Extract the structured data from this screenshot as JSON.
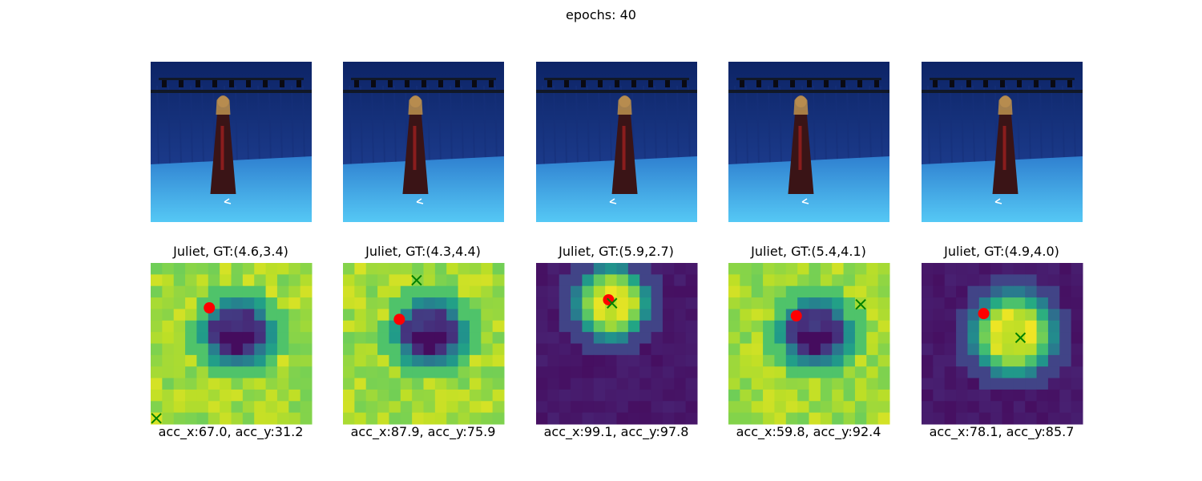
{
  "suptitle": "epochs: 40",
  "chart_data": {
    "type": "heatmap",
    "colormap": "viridis",
    "grid_size": [
      14,
      14
    ],
    "axes_visible": false,
    "markers": {
      "predicted": {
        "shape": "filled circle",
        "color": "#ff0000"
      },
      "ground_truth": {
        "shape": "x",
        "color": "#008000"
      }
    },
    "panels": [
      {
        "title": "Juliet, GT:(4.6,3.4)",
        "footer": "acc_x:67.0, acc_y:31.2",
        "pattern": "ring",
        "center": [
          7.6,
          6.1
        ],
        "radius": 3.3,
        "pred": [
          5.1,
          3.9
        ],
        "gt": [
          0.5,
          13.5
        ]
      },
      {
        "title": "Juliet, GT:(4.3,4.4)",
        "footer": "acc_x:87.9, acc_y:75.9",
        "pattern": "ring",
        "center": [
          7.6,
          6.1
        ],
        "radius": 3.3,
        "pred": [
          4.9,
          4.9
        ],
        "gt": [
          6.4,
          1.5
        ]
      },
      {
        "title": "Juliet, GT:(5.9,2.7)",
        "footer": "acc_x:99.1, acc_y:97.8",
        "pattern": "blob",
        "center": [
          6.6,
          3.5
        ],
        "radius": 3.5,
        "pred": [
          6.3,
          3.2
        ],
        "gt": [
          6.6,
          3.5
        ]
      },
      {
        "title": "Juliet, GT:(5.4,4.1)",
        "footer": "acc_x:59.8, acc_y:92.4",
        "pattern": "ring",
        "center": [
          7.6,
          6.1
        ],
        "radius": 3.3,
        "pred": [
          5.9,
          4.6
        ],
        "gt": [
          11.5,
          3.6
        ]
      },
      {
        "title": "Juliet, GT:(4.9,4.0)",
        "footer": "acc_x:78.1, acc_y:85.7",
        "pattern": "blob",
        "center": [
          8.0,
          6.2
        ],
        "radius": 4.0,
        "pred": [
          5.4,
          4.4
        ],
        "gt": [
          8.6,
          6.5
        ]
      }
    ]
  },
  "colors": {
    "wall": "#1b3a8a",
    "floor": "#3ea0e6",
    "truss": "#111827",
    "dress": "#3a1416"
  }
}
